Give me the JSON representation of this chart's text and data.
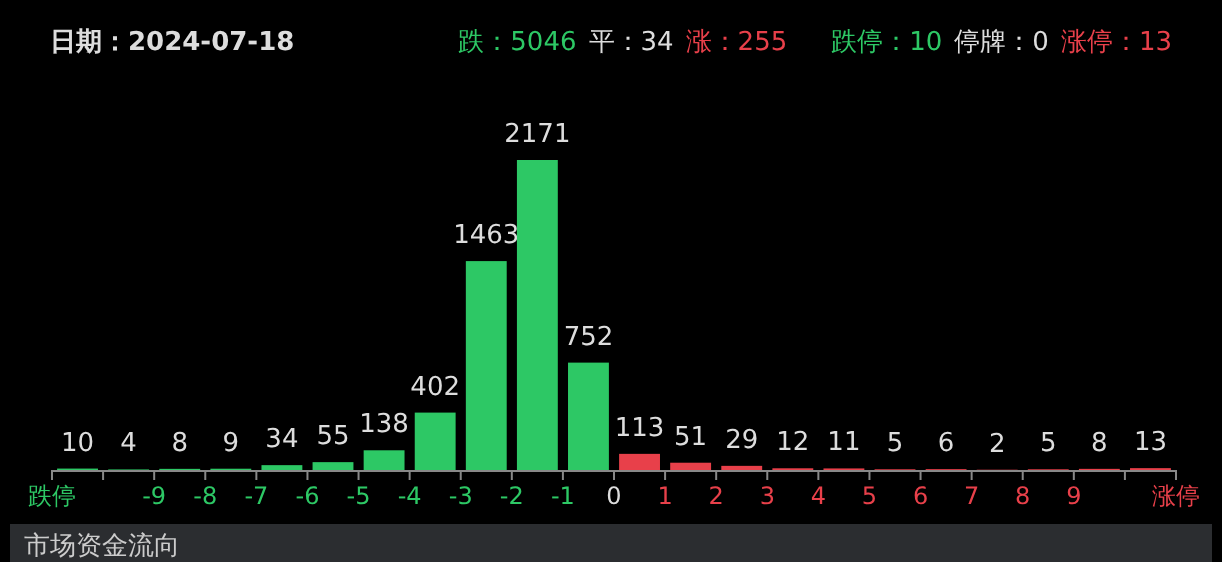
{
  "chart_data": {
    "type": "bar",
    "title": "日期：2024-07-18",
    "annotations": [
      "跌：5046",
      "平：34",
      "涨：255",
      "跌停：10",
      "停牌：0",
      "涨停：13",
      "市场资金流向"
    ],
    "x": [
      -10.5,
      -9.5,
      -8.5,
      -7.5,
      -6.5,
      -5.5,
      -4.5,
      -3.5,
      -2.5,
      -1.5,
      -0.5,
      0.5,
      1.5,
      2.5,
      3.5,
      4.5,
      5.5,
      6.5,
      7.5,
      8.5,
      9.5,
      10.5
    ],
    "values": [
      10,
      4,
      8,
      9,
      34,
      55,
      138,
      402,
      1463,
      2171,
      752,
      113,
      51,
      29,
      12,
      11,
      5,
      6,
      2,
      5,
      8,
      13
    ],
    "colors": [
      "#2dc865",
      "#2dc865",
      "#2dc865",
      "#2dc865",
      "#2dc865",
      "#2dc865",
      "#2dc865",
      "#2dc865",
      "#2dc865",
      "#2dc865",
      "#2dc865",
      "#e8404a",
      "#e8404a",
      "#e8404a",
      "#e8404a",
      "#e8404a",
      "#e8404a",
      "#e8404a",
      "#e8404a",
      "#e8404a",
      "#e8404a",
      "#e8404a"
    ],
    "xlim": [
      -11,
      11
    ],
    "xticks": [
      {
        "value": -11,
        "label": "跌停"
      },
      {
        "value": -10,
        "label": null
      },
      {
        "value": -9,
        "label": "-9"
      },
      {
        "value": -8,
        "label": "-8"
      },
      {
        "value": -7,
        "label": "-7"
      },
      {
        "value": -6,
        "label": "-6"
      },
      {
        "value": -5,
        "label": "-5"
      },
      {
        "value": -4,
        "label": "-4"
      },
      {
        "value": -3,
        "label": "-3"
      },
      {
        "value": -2,
        "label": "-2"
      },
      {
        "value": -1,
        "label": "-1"
      },
      {
        "value": 0,
        "label": "0"
      },
      {
        "value": 1,
        "label": "1"
      },
      {
        "value": 2,
        "label": "2"
      },
      {
        "value": 3,
        "label": "3"
      },
      {
        "value": 4,
        "label": "4"
      },
      {
        "value": 5,
        "label": "5"
      },
      {
        "value": 6,
        "label": "6"
      },
      {
        "value": 7,
        "label": "7"
      },
      {
        "value": 8,
        "label": "8"
      },
      {
        "value": 9,
        "label": "9"
      },
      {
        "value": 10,
        "label": null
      },
      {
        "value": 11,
        "label": "涨停"
      }
    ],
    "data_labels": true
  }
}
